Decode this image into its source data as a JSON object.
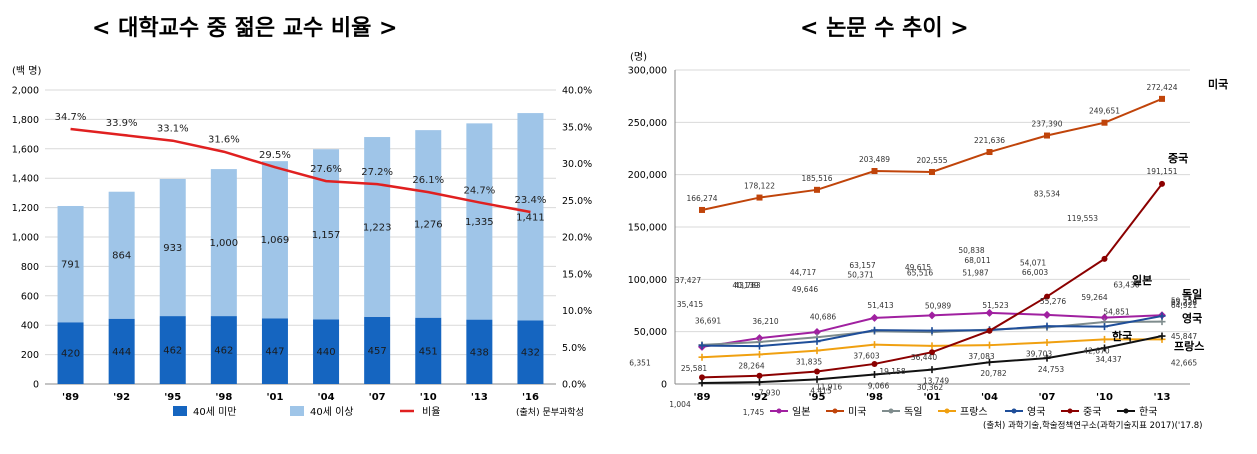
{
  "titles": {
    "left": "< 대학교수 중 젊은 교수 비율 >",
    "right": "< 논문 수 추이 >"
  },
  "source_left": "(출처) 문부과학성",
  "source_right": "(출처) 과학기술,학술정책연구소(과학기술지표 2017)('17.8)",
  "colors": {
    "under40": "#1565c0",
    "over40": "#9fc5e8",
    "ratio": "#e02020",
    "japan": "#a020a0",
    "usa": "#c0440a",
    "germany": "#7f8c8d",
    "france": "#f0a010",
    "uk": "#1f4e99",
    "china": "#8b0000",
    "korea": "#111111"
  },
  "chart_data": [
    {
      "type": "bar",
      "stacked": true,
      "left_axis_unit": "(백 명)",
      "categories": [
        "'89",
        "'92",
        "'95",
        "'98",
        "'01",
        "'04",
        "'07",
        "'10",
        "'13",
        "'16"
      ],
      "ylim": [
        0,
        2000
      ],
      "yticks": [
        "0",
        "200",
        "400",
        "600",
        "800",
        "1,000",
        "1,200",
        "1,400",
        "1,600",
        "1,800",
        "2,000"
      ],
      "y2lim": [
        0,
        40
      ],
      "y2ticks": [
        "0.0%",
        "5.0%",
        "10.0%",
        "15.0%",
        "20.0%",
        "25.0%",
        "30.0%",
        "35.0%",
        "40.0%"
      ],
      "series": [
        {
          "name": "40세 미만",
          "values": [
            420,
            444,
            462,
            462,
            447,
            440,
            457,
            451,
            438,
            432
          ],
          "labels": [
            "420",
            "444",
            "462",
            "462",
            "447",
            "440",
            "457",
            "451",
            "438",
            "432"
          ]
        },
        {
          "name": "40세 이상",
          "values": [
            791,
            864,
            933,
            1000,
            1069,
            1157,
            1223,
            1276,
            1335,
            1411
          ],
          "labels": [
            "791",
            "864",
            "933",
            "1,000",
            "1,069",
            "1,157",
            "1,223",
            "1,276",
            "1,335",
            "1,411"
          ]
        },
        {
          "name": "비율",
          "type": "line",
          "axis": "right",
          "values": [
            34.7,
            33.9,
            33.1,
            31.6,
            29.5,
            27.6,
            27.2,
            26.1,
            24.7,
            23.4
          ],
          "labels": [
            "34.7%",
            "33.9%",
            "33.1%",
            "31.6%",
            "29.5%",
            "27.6%",
            "27.2%",
            "26.1%",
            "24.7%",
            "23.4%"
          ]
        }
      ],
      "grid": true,
      "legend": "bottom"
    },
    {
      "type": "line",
      "y_axis_unit": "(명)",
      "categories": [
        "'89",
        "'92",
        "'95",
        "'98",
        "'01",
        "'04",
        "'07",
        "'10",
        "'13"
      ],
      "ylim": [
        0,
        300000
      ],
      "yticks": [
        "0",
        "50,000",
        "100,000",
        "150,000",
        "200,000",
        "250,000",
        "300,000"
      ],
      "series": [
        {
          "name": "일본",
          "tag": "일본",
          "values": [
            35415,
            43783,
            49646,
            63157,
            65516,
            68011,
            66003,
            63430,
            65728
          ],
          "labels": [
            "35,415",
            "43,783",
            "49,646",
            "63,157",
            "65,516",
            "68,011",
            "66,003",
            "63,430",
            "65,728"
          ]
        },
        {
          "name": "미국",
          "tag": "미국",
          "values": [
            166274,
            178122,
            185516,
            203489,
            202555,
            221636,
            237390,
            249651,
            272424
          ],
          "labels": [
            "166,274",
            "178,122",
            "185,516",
            "203,489",
            "202,555",
            "221,636",
            "237,390",
            "249,651",
            "272,424"
          ]
        },
        {
          "name": "독일",
          "tag": "독일",
          "values": [
            37427,
            40139,
            44717,
            50371,
            49615,
            51987,
            54071,
            59264,
            59554
          ],
          "labels": [
            "37,427",
            "40,139",
            "44,717",
            "50,371",
            "49,615",
            "51,987",
            "54,071",
            "59,264",
            "59,554"
          ]
        },
        {
          "name": "프랑스",
          "tag": "프랑스",
          "values": [
            25581,
            28264,
            31835,
            37603,
            36440,
            37083,
            39703,
            42670,
            42665
          ],
          "labels": [
            "25,581",
            "28,264",
            "31,835",
            "37,603",
            "36,440",
            "37,083",
            "39,703",
            "42,670",
            "42,665"
          ]
        },
        {
          "name": "영국",
          "tag": "영국",
          "values": [
            36691,
            36210,
            40686,
            51413,
            50989,
            51523,
            55276,
            54851,
            64921
          ],
          "labels": [
            "36,691",
            "36,210",
            "40,686",
            "51,413",
            "50,989",
            "51,523",
            "55,276",
            "54,851",
            "64,921"
          ]
        },
        {
          "name": "중국",
          "tag": "중국",
          "values": [
            6351,
            7930,
            11916,
            19158,
            30362,
            50838,
            83534,
            119553,
            191151
          ],
          "labels": [
            "6,351",
            "7,930",
            "11,916",
            "19,158",
            "30,362",
            "50,838",
            "83,534",
            "119,553",
            "191,151"
          ]
        },
        {
          "name": "한국",
          "tag": "한국",
          "values": [
            1004,
            1745,
            4415,
            9066,
            13749,
            20782,
            24753,
            34437,
            45847
          ],
          "labels": [
            "1,004",
            "1,745",
            "4,415",
            "9,066",
            "13,749",
            "20,782",
            "24,753",
            "34,437",
            "45,847"
          ]
        }
      ],
      "grid": true,
      "legend": "bottom"
    }
  ]
}
